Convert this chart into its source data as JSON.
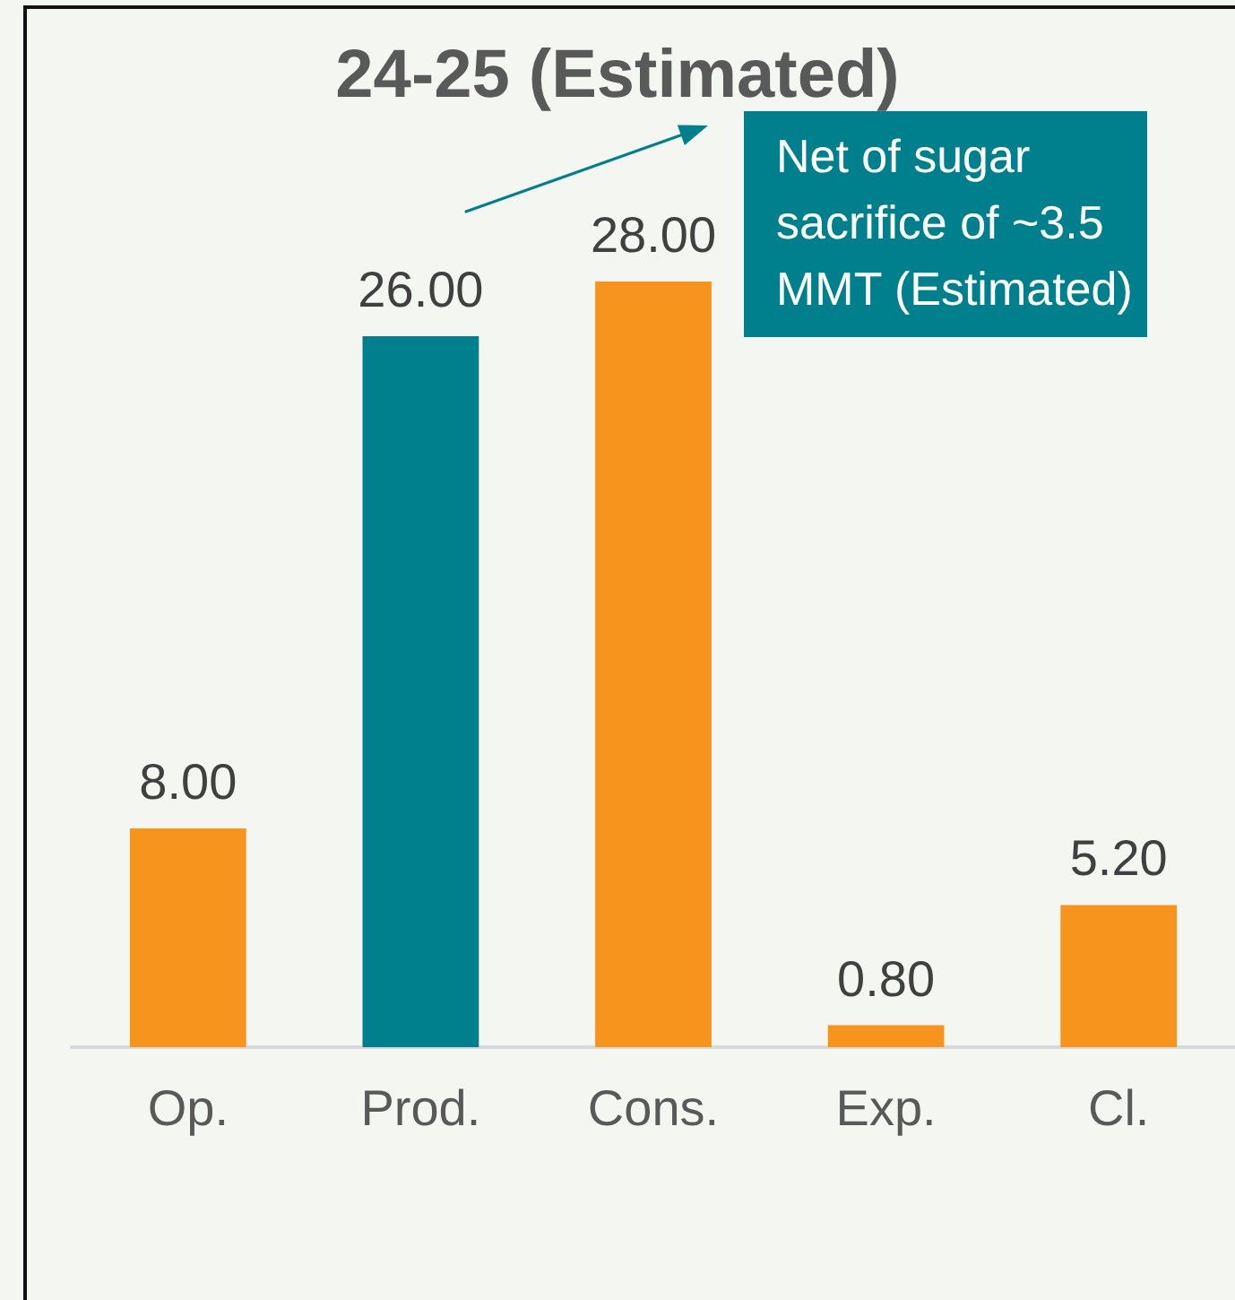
{
  "chart_data": {
    "type": "bar",
    "title": "24-25 (Estimated)",
    "categories": [
      "Op.",
      "Prod.",
      "Cons.",
      "Exp.",
      "Cl."
    ],
    "values": [
      8,
      26,
      28,
      0.8,
      5.2
    ],
    "colors": [
      "#f7941d",
      "#00808c",
      "#f7941d",
      "#f7941d",
      "#f7941d"
    ],
    "value_labels": [
      "8.00",
      "26.00",
      "28.00",
      "0.80",
      "5.20"
    ],
    "annotations": [
      "Net of sugar sacrifice of ~3.5 MMT (Estimated)"
    ]
  }
}
